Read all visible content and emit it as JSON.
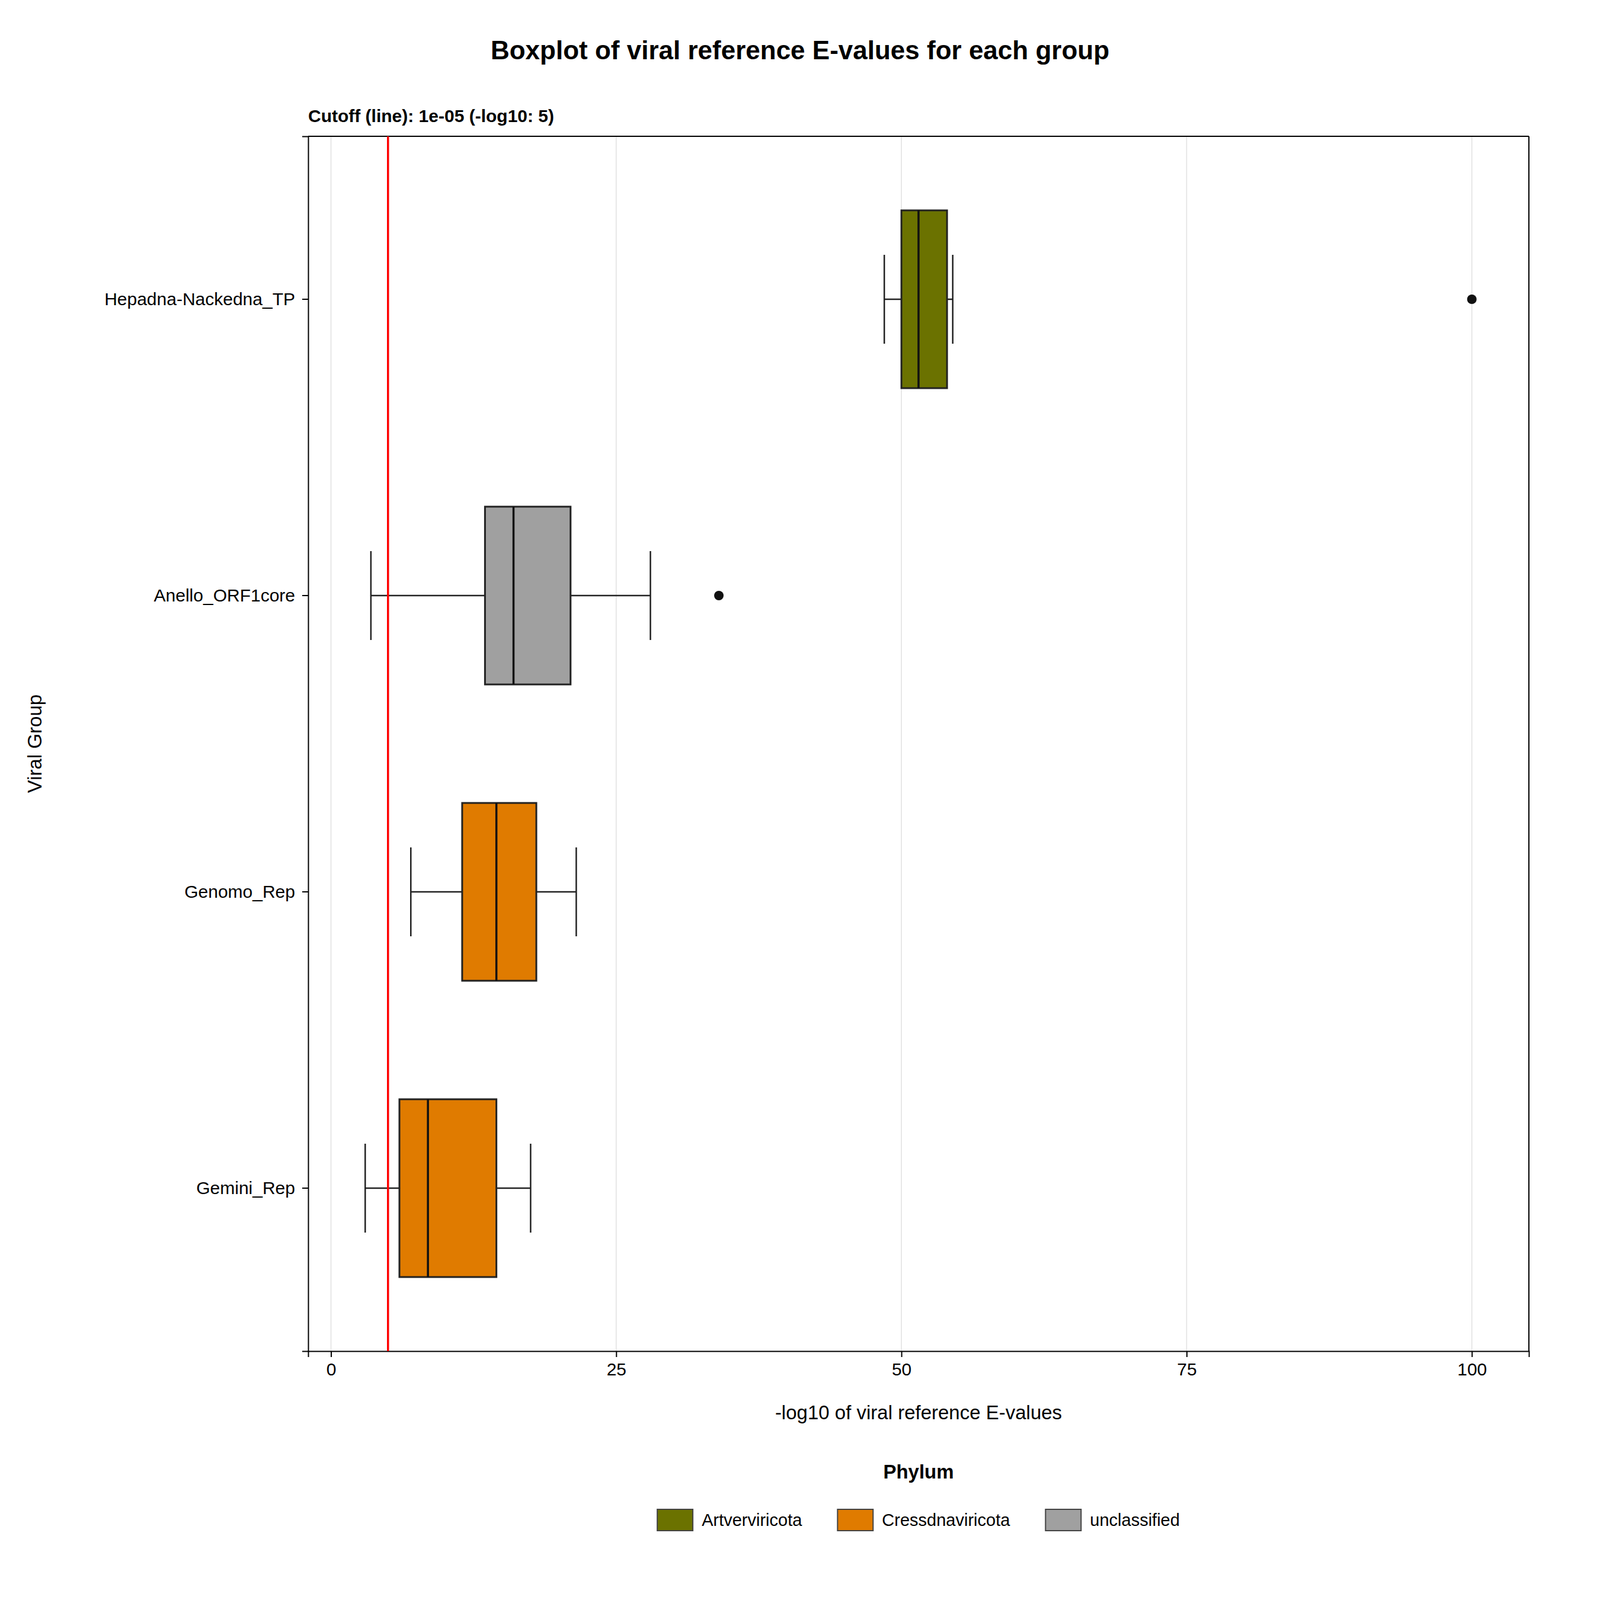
{
  "chart_data": {
    "type": "box",
    "orientation": "horizontal",
    "title": "Boxplot of viral reference E-values for each group",
    "subtitle": "Cutoff (line): 1e-05 (-log10: 5)",
    "xlabel": "-log10 of viral reference E-values",
    "ylabel": "Viral Group",
    "categories": [
      "Hepadna-Nackedna_TP",
      "Anello_ORF1core",
      "Genomo_Rep",
      "Gemini_Rep"
    ],
    "colors": [
      "#6b7200",
      "#a0a0a0",
      "#e07b00",
      "#e07b00"
    ],
    "boxes": [
      {
        "whisker_low": 48.5,
        "q1": 50.0,
        "median": 51.5,
        "q3": 54.0,
        "whisker_high": 54.5,
        "fliers": [
          100.0
        ]
      },
      {
        "whisker_low": 3.5,
        "q1": 13.5,
        "median": 16.0,
        "q3": 21.0,
        "whisker_high": 28.0,
        "fliers": [
          34.0
        ]
      },
      {
        "whisker_low": 7.0,
        "q1": 11.5,
        "median": 14.5,
        "q3": 18.0,
        "whisker_high": 21.5,
        "fliers": []
      },
      {
        "whisker_low": 3.0,
        "q1": 6.0,
        "median": 8.5,
        "q3": 14.5,
        "whisker_high": 17.5,
        "fliers": []
      }
    ],
    "reference_line": {
      "value": 5,
      "color": "red"
    },
    "xlim": [
      -2,
      105
    ],
    "xticks": [
      0,
      25,
      50,
      75,
      100
    ],
    "grid": true,
    "legend": "bottom",
    "legend_title": "Phylum",
    "legend_items": [
      {
        "label": "Artverviricota",
        "color": "#6b7200"
      },
      {
        "label": "Cressdnaviricota",
        "color": "#e07b00"
      },
      {
        "label": "unclassified",
        "color": "#a0a0a0"
      }
    ]
  }
}
